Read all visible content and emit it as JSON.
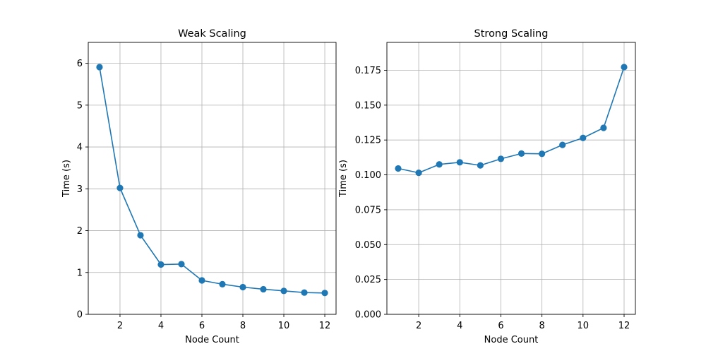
{
  "chart_data": [
    {
      "type": "line",
      "title": "Weak Scaling",
      "xlabel": "Node Count",
      "ylabel": "Time (s)",
      "x": [
        1,
        2,
        3,
        4,
        5,
        6,
        7,
        8,
        9,
        10,
        11,
        12
      ],
      "series": [
        {
          "values": [
            5.91,
            3.02,
            1.89,
            1.19,
            1.2,
            0.81,
            0.72,
            0.65,
            0.6,
            0.56,
            0.52,
            0.51
          ],
          "color": "#1f77b4",
          "marker": "circle"
        }
      ],
      "xlim": [
        0.45,
        12.55
      ],
      "ylim": [
        0,
        6.5
      ],
      "xticks": [
        2,
        4,
        6,
        8,
        10,
        12
      ],
      "xtick_labels": [
        "2",
        "4",
        "6",
        "8",
        "10",
        "12"
      ],
      "yticks": [
        0,
        1,
        2,
        3,
        4,
        5,
        6
      ],
      "ytick_labels": [
        "0",
        "1",
        "2",
        "3",
        "4",
        "5",
        "6"
      ],
      "grid": true
    },
    {
      "type": "line",
      "title": "Strong Scaling",
      "xlabel": "Node Count",
      "ylabel": "Time (s)",
      "x": [
        1,
        2,
        3,
        4,
        5,
        6,
        7,
        8,
        9,
        10,
        11,
        12
      ],
      "series": [
        {
          "values": [
            0.1046,
            0.1015,
            0.1075,
            0.109,
            0.1068,
            0.1115,
            0.1153,
            0.1151,
            0.1215,
            0.1265,
            0.1337,
            0.1773
          ],
          "color": "#1f77b4",
          "marker": "circle"
        }
      ],
      "xlim": [
        0.45,
        12.55
      ],
      "ylim": [
        0,
        0.195
      ],
      "xticks": [
        2,
        4,
        6,
        8,
        10,
        12
      ],
      "xtick_labels": [
        "2",
        "4",
        "6",
        "8",
        "10",
        "12"
      ],
      "yticks": [
        0,
        0.025,
        0.05,
        0.075,
        0.1,
        0.125,
        0.15,
        0.175
      ],
      "ytick_labels": [
        "0.000",
        "0.025",
        "0.050",
        "0.075",
        "0.100",
        "0.125",
        "0.150",
        "0.175"
      ],
      "grid": true
    }
  ]
}
